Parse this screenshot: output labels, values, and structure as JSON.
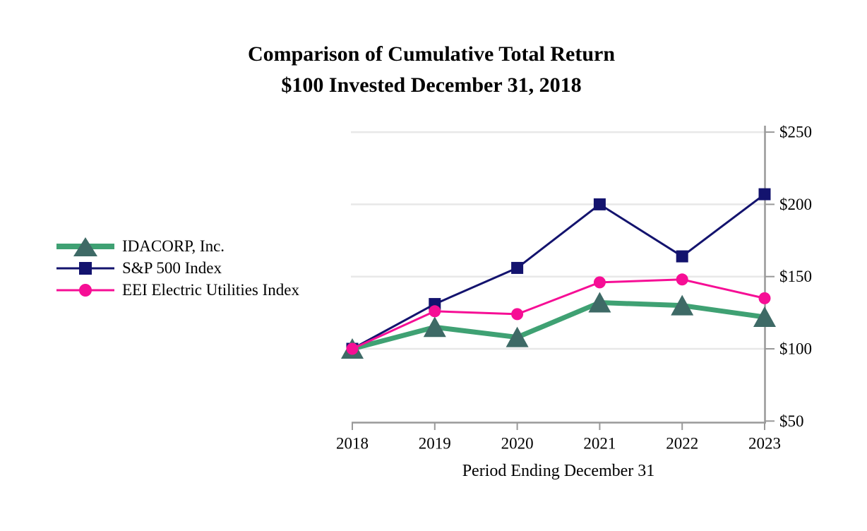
{
  "title": {
    "line1": "Comparison of Cumulative Total Return",
    "line2": "$100 Invested December 31, 2018"
  },
  "chart_data": {
    "type": "line",
    "categories": [
      "2018",
      "2019",
      "2020",
      "2021",
      "2022",
      "2023"
    ],
    "series": [
      {
        "name": "IDACORP, Inc.",
        "values": [
          100,
          115,
          108,
          132,
          130,
          122
        ],
        "color": "#3FA173",
        "marker": "triangle",
        "marker_color": "#3E6A66",
        "line_width": 7
      },
      {
        "name": "S&P 500 Index",
        "values": [
          100,
          131,
          156,
          200,
          164,
          207
        ],
        "color": "#13136E",
        "marker": "square",
        "marker_color": "#13136E",
        "line_width": 3
      },
      {
        "name": "EEI Electric Utilities Index",
        "values": [
          100,
          126,
          124,
          146,
          148,
          135
        ],
        "color": "#F60E95",
        "marker": "circle",
        "marker_color": "#F60E95",
        "line_width": 3
      }
    ],
    "xlabel": "Period Ending December 31",
    "ylabel": "",
    "ylim": [
      50,
      250
    ],
    "yticks": [
      50,
      100,
      150,
      200,
      250
    ],
    "ytick_labels": [
      "$50",
      "$100",
      "$150",
      "$200",
      "$250"
    ],
    "ytick_side": "right",
    "grid": "horizontal-at-100-and-above",
    "legend_position": "left-middle",
    "axis_color": "#999999",
    "grid_color": "#E8E8E8",
    "text_color": "#000000",
    "background_color": "#FFFFFF"
  }
}
